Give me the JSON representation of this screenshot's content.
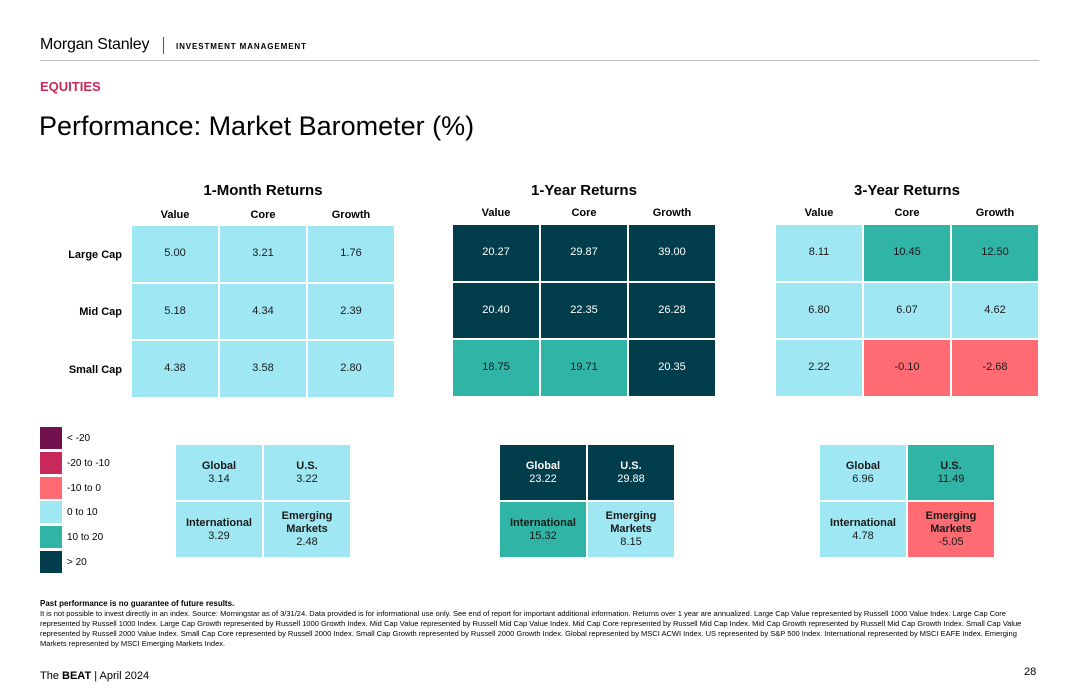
{
  "header": {
    "brand": "Morgan Stanley",
    "division": "INVESTMENT MANAGEMENT",
    "section": "EQUITIES",
    "title": "Performance: Market Barometer (%)"
  },
  "column_labels": [
    "Value",
    "Core",
    "Growth"
  ],
  "row_labels": [
    "Large Cap",
    "Mid Cap",
    "Small Cap"
  ],
  "panels": [
    {
      "title": "1-Month Returns",
      "grid": [
        [
          "5.00",
          "3.21",
          "1.76"
        ],
        [
          "5.18",
          "4.34",
          "2.39"
        ],
        [
          "4.38",
          "3.58",
          "2.80"
        ]
      ],
      "grid_colors": [
        [
          "light",
          "light",
          "light"
        ],
        [
          "light",
          "light",
          "light"
        ],
        [
          "light",
          "light",
          "light"
        ]
      ],
      "regions": [
        {
          "name": "Global",
          "value": "3.14",
          "color": "light"
        },
        {
          "name": "U.S.",
          "value": "3.22",
          "color": "light"
        },
        {
          "name": "International",
          "value": "3.29",
          "color": "light"
        },
        {
          "name": "Emerging Markets",
          "value": "2.48",
          "color": "light"
        }
      ]
    },
    {
      "title": "1-Year Returns",
      "grid": [
        [
          "20.27",
          "29.87",
          "39.00"
        ],
        [
          "20.40",
          "22.35",
          "26.28"
        ],
        [
          "18.75",
          "19.71",
          "20.35"
        ]
      ],
      "grid_colors": [
        [
          "dark",
          "dark",
          "dark"
        ],
        [
          "dark",
          "dark",
          "dark"
        ],
        [
          "teal",
          "teal",
          "dark"
        ]
      ],
      "regions": [
        {
          "name": "Global",
          "value": "23.22",
          "color": "dark"
        },
        {
          "name": "U.S.",
          "value": "29.88",
          "color": "dark"
        },
        {
          "name": "International",
          "value": "15.32",
          "color": "teal"
        },
        {
          "name": "Emerging Markets",
          "value": "8.15",
          "color": "light"
        }
      ]
    },
    {
      "title": "3-Year Returns",
      "grid": [
        [
          "8.11",
          "10.45",
          "12.50"
        ],
        [
          "6.80",
          "6.07",
          "4.62"
        ],
        [
          "2.22",
          "-0.10",
          "-2.68"
        ]
      ],
      "grid_colors": [
        [
          "light",
          "teal",
          "teal"
        ],
        [
          "light",
          "light",
          "light"
        ],
        [
          "light",
          "coral",
          "coral"
        ]
      ],
      "regions": [
        {
          "name": "Global",
          "value": "6.96",
          "color": "light"
        },
        {
          "name": "U.S.",
          "value": "11.49",
          "color": "teal"
        },
        {
          "name": "International",
          "value": "4.78",
          "color": "light"
        },
        {
          "name": "Emerging Markets",
          "value": "-5.05",
          "color": "coral"
        }
      ]
    }
  ],
  "legend": [
    {
      "label": "< -20",
      "color": "#71114d"
    },
    {
      "label": "-20 to -10",
      "color": "#c8295a"
    },
    {
      "label": "-10 to 0",
      "color": "#ff6b72"
    },
    {
      "label": "0 to 10",
      "color": "#9ee7f3"
    },
    {
      "label": "10 to 20",
      "color": "#30b4a6"
    },
    {
      "label": "> 20",
      "color": "#013d4a"
    }
  ],
  "footnote": {
    "headline": "Past performance is no guarantee of future results.",
    "body": "It is not possible to invest directly in an index. Source: Morningstar as of 3/31/24. Data provided is for informational use only. See end of report for important additional information. Returns over 1 year are annualized. Large Cap Value represented by Russell 1000 Value Index. Large Cap Core represented by Russell 1000 Index. Large Cap Growth represented by Russell 1000 Growth Index. Mid Cap Value represented by Russell Mid Cap Value Index. Mid Cap Core represented by Russell Mid Cap Index. Mid Cap Growth represented by Russell Mid Cap Growth Index. Small Cap Value represented by Russell 2000 Value Index. Small Cap Core represented by Russell 2000 Index. Small Cap Growth represented by Russell 2000 Growth Index. Global represented by MSCI ACWI Index. US represented by S&P 500 Index. International represented by MSCI EAFE Index. Emerging Markets represented by MSCI Emerging Markets Index."
  },
  "footer": {
    "publication_prefix": "The",
    "publication": "BEAT",
    "date": "April 2024",
    "page_number": "28"
  }
}
